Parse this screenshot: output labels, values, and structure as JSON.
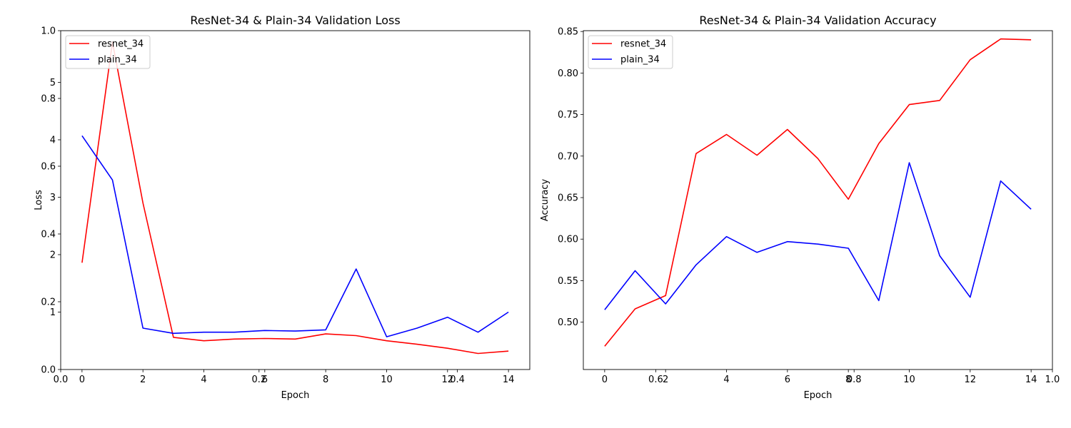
{
  "chart_data": [
    {
      "type": "line",
      "title": "ResNet-34 & Plain-34 Validation Loss",
      "xlabel": "Epoch",
      "ylabel": "Loss",
      "x": [
        0,
        1,
        2,
        3,
        4,
        5,
        6,
        7,
        8,
        9,
        10,
        11,
        12,
        13,
        14
      ],
      "xlim": [
        -0.7,
        14.7
      ],
      "xticks": [
        0,
        2,
        4,
        6,
        8,
        10,
        12,
        14
      ],
      "ylim": [
        0.0,
        5.9
      ],
      "yticks": [
        1,
        2,
        3,
        4,
        5
      ],
      "series": [
        {
          "name": "resnet_34",
          "color": "#ff0000",
          "values": [
            1.86,
            5.7,
            2.9,
            0.56,
            0.5,
            0.53,
            0.54,
            0.53,
            0.62,
            0.59,
            0.5,
            0.44,
            0.37,
            0.28,
            0.32
          ]
        },
        {
          "name": "plain_34",
          "color": "#0000ff",
          "values": [
            4.07,
            3.3,
            0.72,
            0.63,
            0.65,
            0.65,
            0.68,
            0.67,
            0.69,
            1.75,
            0.57,
            0.72,
            0.91,
            0.65,
            1.0
          ]
        }
      ],
      "legend": "upper-left",
      "grid": false
    },
    {
      "type": "line",
      "title": "ResNet-34 & Plain-34 Validation Accuracy",
      "xlabel": "Epoch",
      "ylabel": "Accuracy",
      "x": [
        0,
        1,
        2,
        3,
        4,
        5,
        6,
        7,
        8,
        9,
        10,
        11,
        12,
        13,
        14
      ],
      "xlim": [
        -0.7,
        14.7
      ],
      "xticks": [
        0,
        2,
        4,
        6,
        8,
        10,
        12,
        14
      ],
      "ylim": [
        0.443,
        0.851
      ],
      "yticks": [
        0.5,
        0.55,
        0.6,
        0.65,
        0.7,
        0.75,
        0.8,
        0.85
      ],
      "series": [
        {
          "name": "resnet_34",
          "color": "#ff0000",
          "values": [
            0.471,
            0.516,
            0.532,
            0.703,
            0.726,
            0.701,
            0.732,
            0.697,
            0.648,
            0.715,
            0.762,
            0.767,
            0.816,
            0.841,
            0.84
          ]
        },
        {
          "name": "plain_34",
          "color": "#0000ff",
          "values": [
            0.515,
            0.562,
            0.522,
            0.569,
            0.603,
            0.584,
            0.597,
            0.594,
            0.589,
            0.526,
            0.692,
            0.58,
            0.53,
            0.67,
            0.636
          ]
        }
      ],
      "legend": "upper-left",
      "grid": false
    }
  ],
  "overlay_axes": {
    "yticklabels": [
      "0.0",
      "0.2",
      "0.4",
      "0.6",
      "0.8",
      "1.0"
    ],
    "xticklabels": [
      "0.0",
      "0.2",
      "0.4",
      "0.6",
      "0.8",
      "1.0"
    ]
  }
}
